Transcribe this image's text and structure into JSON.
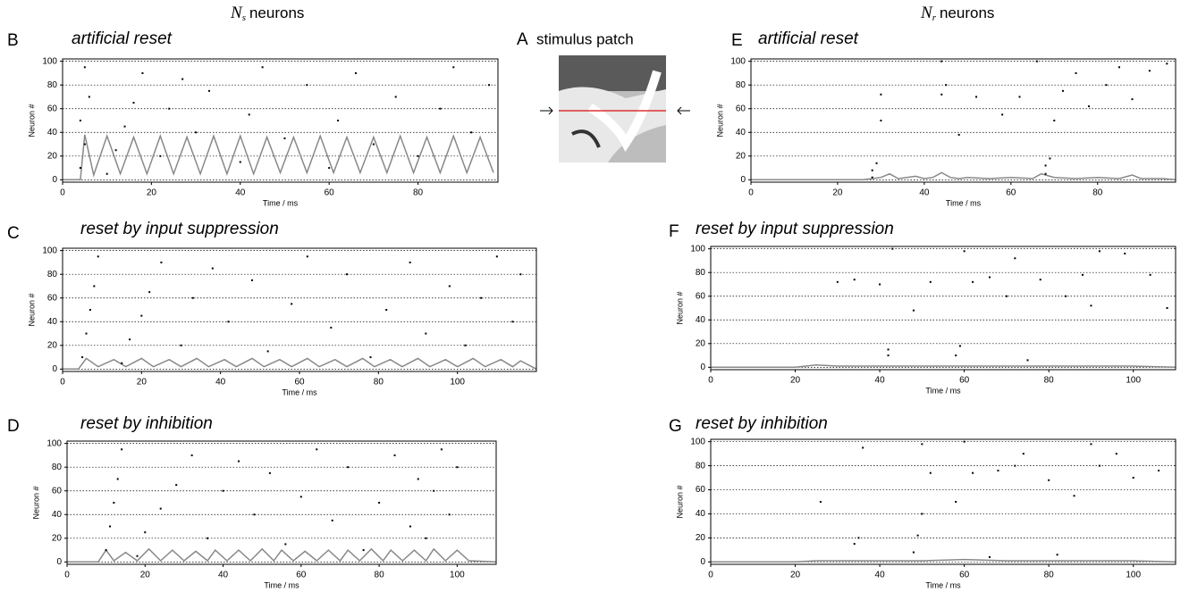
{
  "header": {
    "left": {
      "symbol": "N",
      "sub": "s",
      "text": "neurons"
    },
    "right": {
      "symbol": "N",
      "sub": "r",
      "text": "neurons"
    }
  },
  "stimulus": {
    "label": "A",
    "title": "stimulus patch"
  },
  "chart_data": [
    {
      "type": "raster",
      "label": "B",
      "title": "artificial reset",
      "xlabel": "Time / ms",
      "ylabel": "Neuron #",
      "xlim": [
        0,
        98
      ],
      "ylim": [
        -2,
        102
      ],
      "xticks": [
        0,
        20,
        40,
        60,
        80
      ],
      "yticks": [
        0,
        20,
        40,
        60,
        80,
        100
      ],
      "grid": true,
      "spikes": {
        "color": "#000000",
        "x": [
          4,
          5,
          4,
          6,
          5,
          10,
          12,
          14,
          16,
          18,
          22,
          24,
          27,
          30,
          33,
          40,
          42,
          45,
          50,
          55,
          60,
          62,
          66,
          70,
          75,
          80,
          85,
          88,
          92,
          96
        ],
        "values": [
          10,
          30,
          50,
          70,
          95,
          5,
          25,
          45,
          65,
          90,
          20,
          60,
          85,
          40,
          75,
          15,
          55,
          95,
          35,
          80,
          10,
          50,
          90,
          30,
          70,
          20,
          60,
          95,
          40,
          80
        ]
      },
      "rate": {
        "color": "#888888",
        "x": [
          0,
          4,
          5,
          7,
          10,
          13,
          16,
          19,
          22,
          25,
          28,
          31,
          34,
          37,
          40,
          43,
          46,
          49,
          52,
          55,
          58,
          61,
          64,
          67,
          70,
          73,
          76,
          79,
          82,
          85,
          88,
          91,
          94,
          97
        ],
        "values": [
          0,
          0,
          38,
          4,
          37,
          5,
          36,
          5,
          37,
          5,
          36,
          5,
          37,
          5,
          37,
          5,
          36,
          6,
          36,
          6,
          37,
          6,
          36,
          6,
          36,
          6,
          37,
          6,
          36,
          6,
          37,
          6,
          36,
          6
        ]
      }
    },
    {
      "type": "raster",
      "label": "C",
      "title": "reset by input suppression",
      "xlabel": "Time / ms",
      "ylabel": "Neuron #",
      "xlim": [
        0,
        120
      ],
      "ylim": [
        -2,
        102
      ],
      "xticks": [
        0,
        20,
        40,
        60,
        80,
        100
      ],
      "yticks": [
        0,
        20,
        40,
        60,
        80,
        100
      ],
      "grid": true,
      "spikes": {
        "color": "#000000",
        "x": [
          5,
          6,
          7,
          8,
          9,
          15,
          17,
          20,
          22,
          25,
          30,
          33,
          38,
          42,
          48,
          52,
          58,
          62,
          68,
          72,
          78,
          82,
          88,
          92,
          98,
          102,
          106,
          110,
          114,
          116
        ],
        "values": [
          10,
          30,
          50,
          70,
          95,
          5,
          25,
          45,
          65,
          90,
          20,
          60,
          85,
          40,
          75,
          15,
          55,
          95,
          35,
          80,
          10,
          50,
          90,
          30,
          70,
          20,
          60,
          95,
          40,
          80
        ]
      },
      "rate": {
        "color": "#888888",
        "x": [
          0,
          4,
          6,
          9,
          13,
          16,
          20,
          23,
          27,
          30,
          34,
          37,
          41,
          44,
          48,
          51,
          55,
          58,
          62,
          65,
          69,
          72,
          76,
          79,
          83,
          86,
          90,
          93,
          97,
          100,
          104,
          107,
          111,
          114,
          116,
          120
        ],
        "values": [
          0,
          0,
          9,
          2,
          8,
          2,
          9,
          2,
          8,
          2,
          9,
          2,
          8,
          2,
          9,
          2,
          8,
          2,
          9,
          2,
          8,
          2,
          9,
          2,
          8,
          2,
          9,
          2,
          8,
          2,
          9,
          2,
          8,
          2,
          7,
          0
        ]
      }
    },
    {
      "type": "raster",
      "label": "D",
      "title": "reset by inhibition",
      "xlabel": "Time / ms",
      "ylabel": "Neuron #",
      "xlim": [
        0,
        110
      ],
      "ylim": [
        -2,
        102
      ],
      "xticks": [
        0,
        20,
        40,
        60,
        80,
        100
      ],
      "yticks": [
        0,
        20,
        40,
        60,
        80,
        100
      ],
      "grid": true,
      "spikes": {
        "color": "#000000",
        "x": [
          10,
          11,
          12,
          13,
          14,
          18,
          20,
          24,
          28,
          32,
          36,
          40,
          44,
          48,
          52,
          56,
          60,
          64,
          68,
          72,
          76,
          80,
          84,
          88,
          90,
          92,
          94,
          96,
          98,
          100
        ],
        "values": [
          10,
          30,
          50,
          70,
          95,
          5,
          25,
          45,
          65,
          90,
          20,
          60,
          85,
          40,
          75,
          15,
          55,
          95,
          35,
          80,
          10,
          50,
          90,
          30,
          70,
          20,
          60,
          95,
          40,
          80
        ]
      },
      "rate": {
        "color": "#888888",
        "x": [
          0,
          8,
          10,
          12,
          15,
          18,
          21,
          24,
          27,
          30,
          33,
          36,
          38,
          41,
          44,
          47,
          50,
          53,
          55,
          58,
          61,
          64,
          67,
          70,
          72,
          75,
          78,
          81,
          83,
          86,
          89,
          92,
          94,
          97,
          100,
          103,
          110
        ],
        "values": [
          0,
          0,
          10,
          1,
          8,
          1,
          11,
          1,
          10,
          1,
          9,
          1,
          10,
          1,
          10,
          1,
          11,
          1,
          10,
          1,
          9,
          1,
          10,
          1,
          10,
          1,
          11,
          1,
          10,
          1,
          10,
          1,
          11,
          1,
          10,
          1,
          0
        ]
      }
    },
    {
      "type": "raster",
      "label": "E",
      "title": "artificial reset",
      "xlabel": "Time / ms",
      "ylabel": "Neuron #",
      "xlim": [
        0,
        98
      ],
      "ylim": [
        -2,
        102
      ],
      "xticks": [
        0,
        20,
        40,
        60,
        80
      ],
      "yticks": [
        0,
        20,
        40,
        60,
        80,
        100
      ],
      "grid": true,
      "spikes": {
        "color": "#000000",
        "x": [
          28,
          28,
          29,
          30,
          30,
          44,
          44,
          45,
          48,
          52,
          58,
          62,
          66,
          68,
          68,
          69,
          70,
          72,
          75,
          78,
          82,
          85,
          88,
          92,
          96
        ],
        "values": [
          2,
          8,
          14,
          50,
          72,
          100,
          72,
          80,
          38,
          70,
          55,
          70,
          100,
          5,
          12,
          18,
          50,
          75,
          90,
          62,
          80,
          95,
          68,
          92,
          98
        ]
      },
      "rate": {
        "color": "#888888",
        "x": [
          0,
          26,
          28,
          30,
          32,
          34,
          36,
          38,
          40,
          42,
          44,
          46,
          48,
          50,
          55,
          60,
          65,
          67,
          70,
          75,
          80,
          85,
          88,
          90,
          95,
          98
        ],
        "values": [
          0,
          0,
          1,
          2,
          5,
          1,
          2,
          3,
          1,
          2,
          6,
          2,
          1,
          2,
          1,
          2,
          1,
          5,
          2,
          1,
          2,
          1,
          4,
          1,
          1,
          0
        ]
      }
    },
    {
      "type": "raster",
      "label": "F",
      "title": "reset by input suppression",
      "xlabel": "Time / ms",
      "ylabel": "Neuron #",
      "xlim": [
        0,
        110
      ],
      "ylim": [
        -2,
        102
      ],
      "xticks": [
        0,
        20,
        40,
        60,
        80,
        100
      ],
      "yticks": [
        0,
        20,
        40,
        60,
        80,
        100
      ],
      "grid": true,
      "spikes": {
        "color": "#000000",
        "x": [
          30,
          34,
          40,
          42,
          42,
          43,
          48,
          52,
          58,
          59,
          60,
          62,
          66,
          70,
          72,
          75,
          78,
          84,
          88,
          90,
          92,
          98,
          104,
          108
        ],
        "values": [
          72,
          74,
          70,
          10,
          15,
          100,
          48,
          72,
          10,
          18,
          98,
          72,
          76,
          60,
          92,
          6,
          74,
          60,
          78,
          52,
          98,
          96,
          78,
          50
        ]
      },
      "rate": {
        "color": "#888888",
        "x": [
          0,
          20,
          25,
          30,
          40,
          50,
          60,
          70,
          80,
          90,
          100,
          110
        ],
        "values": [
          0,
          0,
          2,
          1,
          1,
          1,
          1,
          1,
          1,
          1,
          1,
          0
        ]
      }
    },
    {
      "type": "raster",
      "label": "G",
      "title": "reset by inhibition",
      "xlabel": "Time / ms",
      "ylabel": "Neuron #",
      "xlim": [
        0,
        110
      ],
      "ylim": [
        -2,
        102
      ],
      "xticks": [
        0,
        20,
        40,
        60,
        80,
        100
      ],
      "yticks": [
        0,
        20,
        40,
        60,
        80,
        100
      ],
      "grid": true,
      "spikes": {
        "color": "#000000",
        "x": [
          26,
          34,
          35,
          36,
          48,
          49,
          50,
          50,
          52,
          58,
          60,
          62,
          66,
          68,
          72,
          74,
          80,
          82,
          86,
          90,
          92,
          96,
          100,
          106
        ],
        "values": [
          50,
          15,
          20,
          95,
          8,
          22,
          40,
          98,
          74,
          50,
          100,
          74,
          4,
          76,
          80,
          90,
          68,
          6,
          55,
          98,
          80,
          90,
          70,
          76
        ]
      },
      "rate": {
        "color": "#888888",
        "x": [
          0,
          20,
          25,
          30,
          40,
          50,
          60,
          70,
          80,
          90,
          100,
          110
        ],
        "values": [
          0,
          0,
          1,
          1,
          1,
          1,
          2,
          1,
          1,
          1,
          1,
          0
        ]
      }
    }
  ]
}
